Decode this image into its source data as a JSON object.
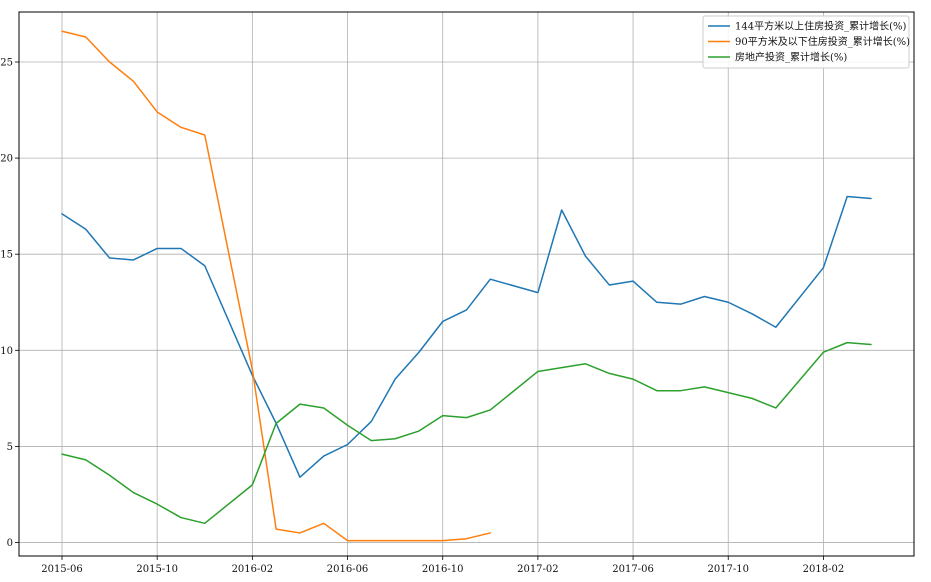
{
  "chart_data": {
    "type": "line",
    "title": "",
    "xlabel": "",
    "ylabel": "",
    "x_domain": [
      "2015-06",
      "2018-04"
    ],
    "x_ticks": [
      "2015-06",
      "2015-10",
      "2016-02",
      "2016-06",
      "2016-10",
      "2017-02",
      "2017-06",
      "2017-10",
      "2018-02"
    ],
    "y_ticks": [
      0,
      5,
      10,
      15,
      20,
      25
    ],
    "ylim": [
      -0.7,
      27.6
    ],
    "grid": true,
    "legend_position": "top-right",
    "series": [
      {
        "name": "144平方米以上住房投资_累计增长(%)",
        "color": "#1f77b4",
        "points": [
          [
            "2015-06",
            17.1
          ],
          [
            "2015-07",
            16.3
          ],
          [
            "2015-08",
            14.8
          ],
          [
            "2015-09",
            14.7
          ],
          [
            "2015-10",
            15.3
          ],
          [
            "2015-11",
            15.3
          ],
          [
            "2015-12",
            14.4
          ],
          [
            "2016-02",
            8.7
          ],
          [
            "2016-03",
            6.2
          ],
          [
            "2016-04",
            3.4
          ],
          [
            "2016-05",
            4.5
          ],
          [
            "2016-06",
            5.1
          ],
          [
            "2016-07",
            6.3
          ],
          [
            "2016-08",
            8.5
          ],
          [
            "2016-09",
            9.9
          ],
          [
            "2016-10",
            11.5
          ],
          [
            "2016-11",
            12.1
          ],
          [
            "2016-12",
            13.7
          ],
          [
            "2017-02",
            13.0
          ],
          [
            "2017-03",
            17.3
          ],
          [
            "2017-04",
            14.9
          ],
          [
            "2017-05",
            13.4
          ],
          [
            "2017-06",
            13.6
          ],
          [
            "2017-07",
            12.5
          ],
          [
            "2017-08",
            12.4
          ],
          [
            "2017-09",
            12.8
          ],
          [
            "2017-10",
            12.5
          ],
          [
            "2017-11",
            11.9
          ],
          [
            "2017-12",
            11.2
          ],
          [
            "2018-02",
            14.3
          ],
          [
            "2018-03",
            18.0
          ],
          [
            "2018-04",
            17.9
          ]
        ]
      },
      {
        "name": "90平方米及以下住房投资_累计增长(%)",
        "color": "#ff7f0e",
        "points": [
          [
            "2015-06",
            26.6
          ],
          [
            "2015-07",
            26.3
          ],
          [
            "2015-08",
            25.0
          ],
          [
            "2015-09",
            24.0
          ],
          [
            "2015-10",
            22.4
          ],
          [
            "2015-11",
            21.6
          ],
          [
            "2015-12",
            21.2
          ],
          [
            "2016-02",
            9.0
          ],
          [
            "2016-03",
            0.7
          ],
          [
            "2016-04",
            0.5
          ],
          [
            "2016-05",
            1.0
          ],
          [
            "2016-06",
            0.1
          ],
          [
            "2016-07",
            0.1
          ],
          [
            "2016-08",
            0.1
          ],
          [
            "2016-09",
            0.1
          ],
          [
            "2016-10",
            0.1
          ],
          [
            "2016-11",
            0.2
          ],
          [
            "2016-12",
            0.5
          ]
        ]
      },
      {
        "name": "房地产投资_累计增长(%)",
        "color": "#2ca02c",
        "points": [
          [
            "2015-06",
            4.6
          ],
          [
            "2015-07",
            4.3
          ],
          [
            "2015-08",
            3.5
          ],
          [
            "2015-09",
            2.6
          ],
          [
            "2015-10",
            2.0
          ],
          [
            "2015-11",
            1.3
          ],
          [
            "2015-12",
            1.0
          ],
          [
            "2016-02",
            3.0
          ],
          [
            "2016-03",
            6.2
          ],
          [
            "2016-04",
            7.2
          ],
          [
            "2016-05",
            7.0
          ],
          [
            "2016-06",
            6.1
          ],
          [
            "2016-07",
            5.3
          ],
          [
            "2016-08",
            5.4
          ],
          [
            "2016-09",
            5.8
          ],
          [
            "2016-10",
            6.6
          ],
          [
            "2016-11",
            6.5
          ],
          [
            "2016-12",
            6.9
          ],
          [
            "2017-02",
            8.9
          ],
          [
            "2017-03",
            9.1
          ],
          [
            "2017-04",
            9.3
          ],
          [
            "2017-05",
            8.8
          ],
          [
            "2017-06",
            8.5
          ],
          [
            "2017-07",
            7.9
          ],
          [
            "2017-08",
            7.9
          ],
          [
            "2017-09",
            8.1
          ],
          [
            "2017-10",
            7.8
          ],
          [
            "2017-11",
            7.5
          ],
          [
            "2017-12",
            7.0
          ],
          [
            "2018-02",
            9.9
          ],
          [
            "2018-03",
            10.4
          ],
          [
            "2018-04",
            10.3
          ]
        ]
      }
    ]
  }
}
